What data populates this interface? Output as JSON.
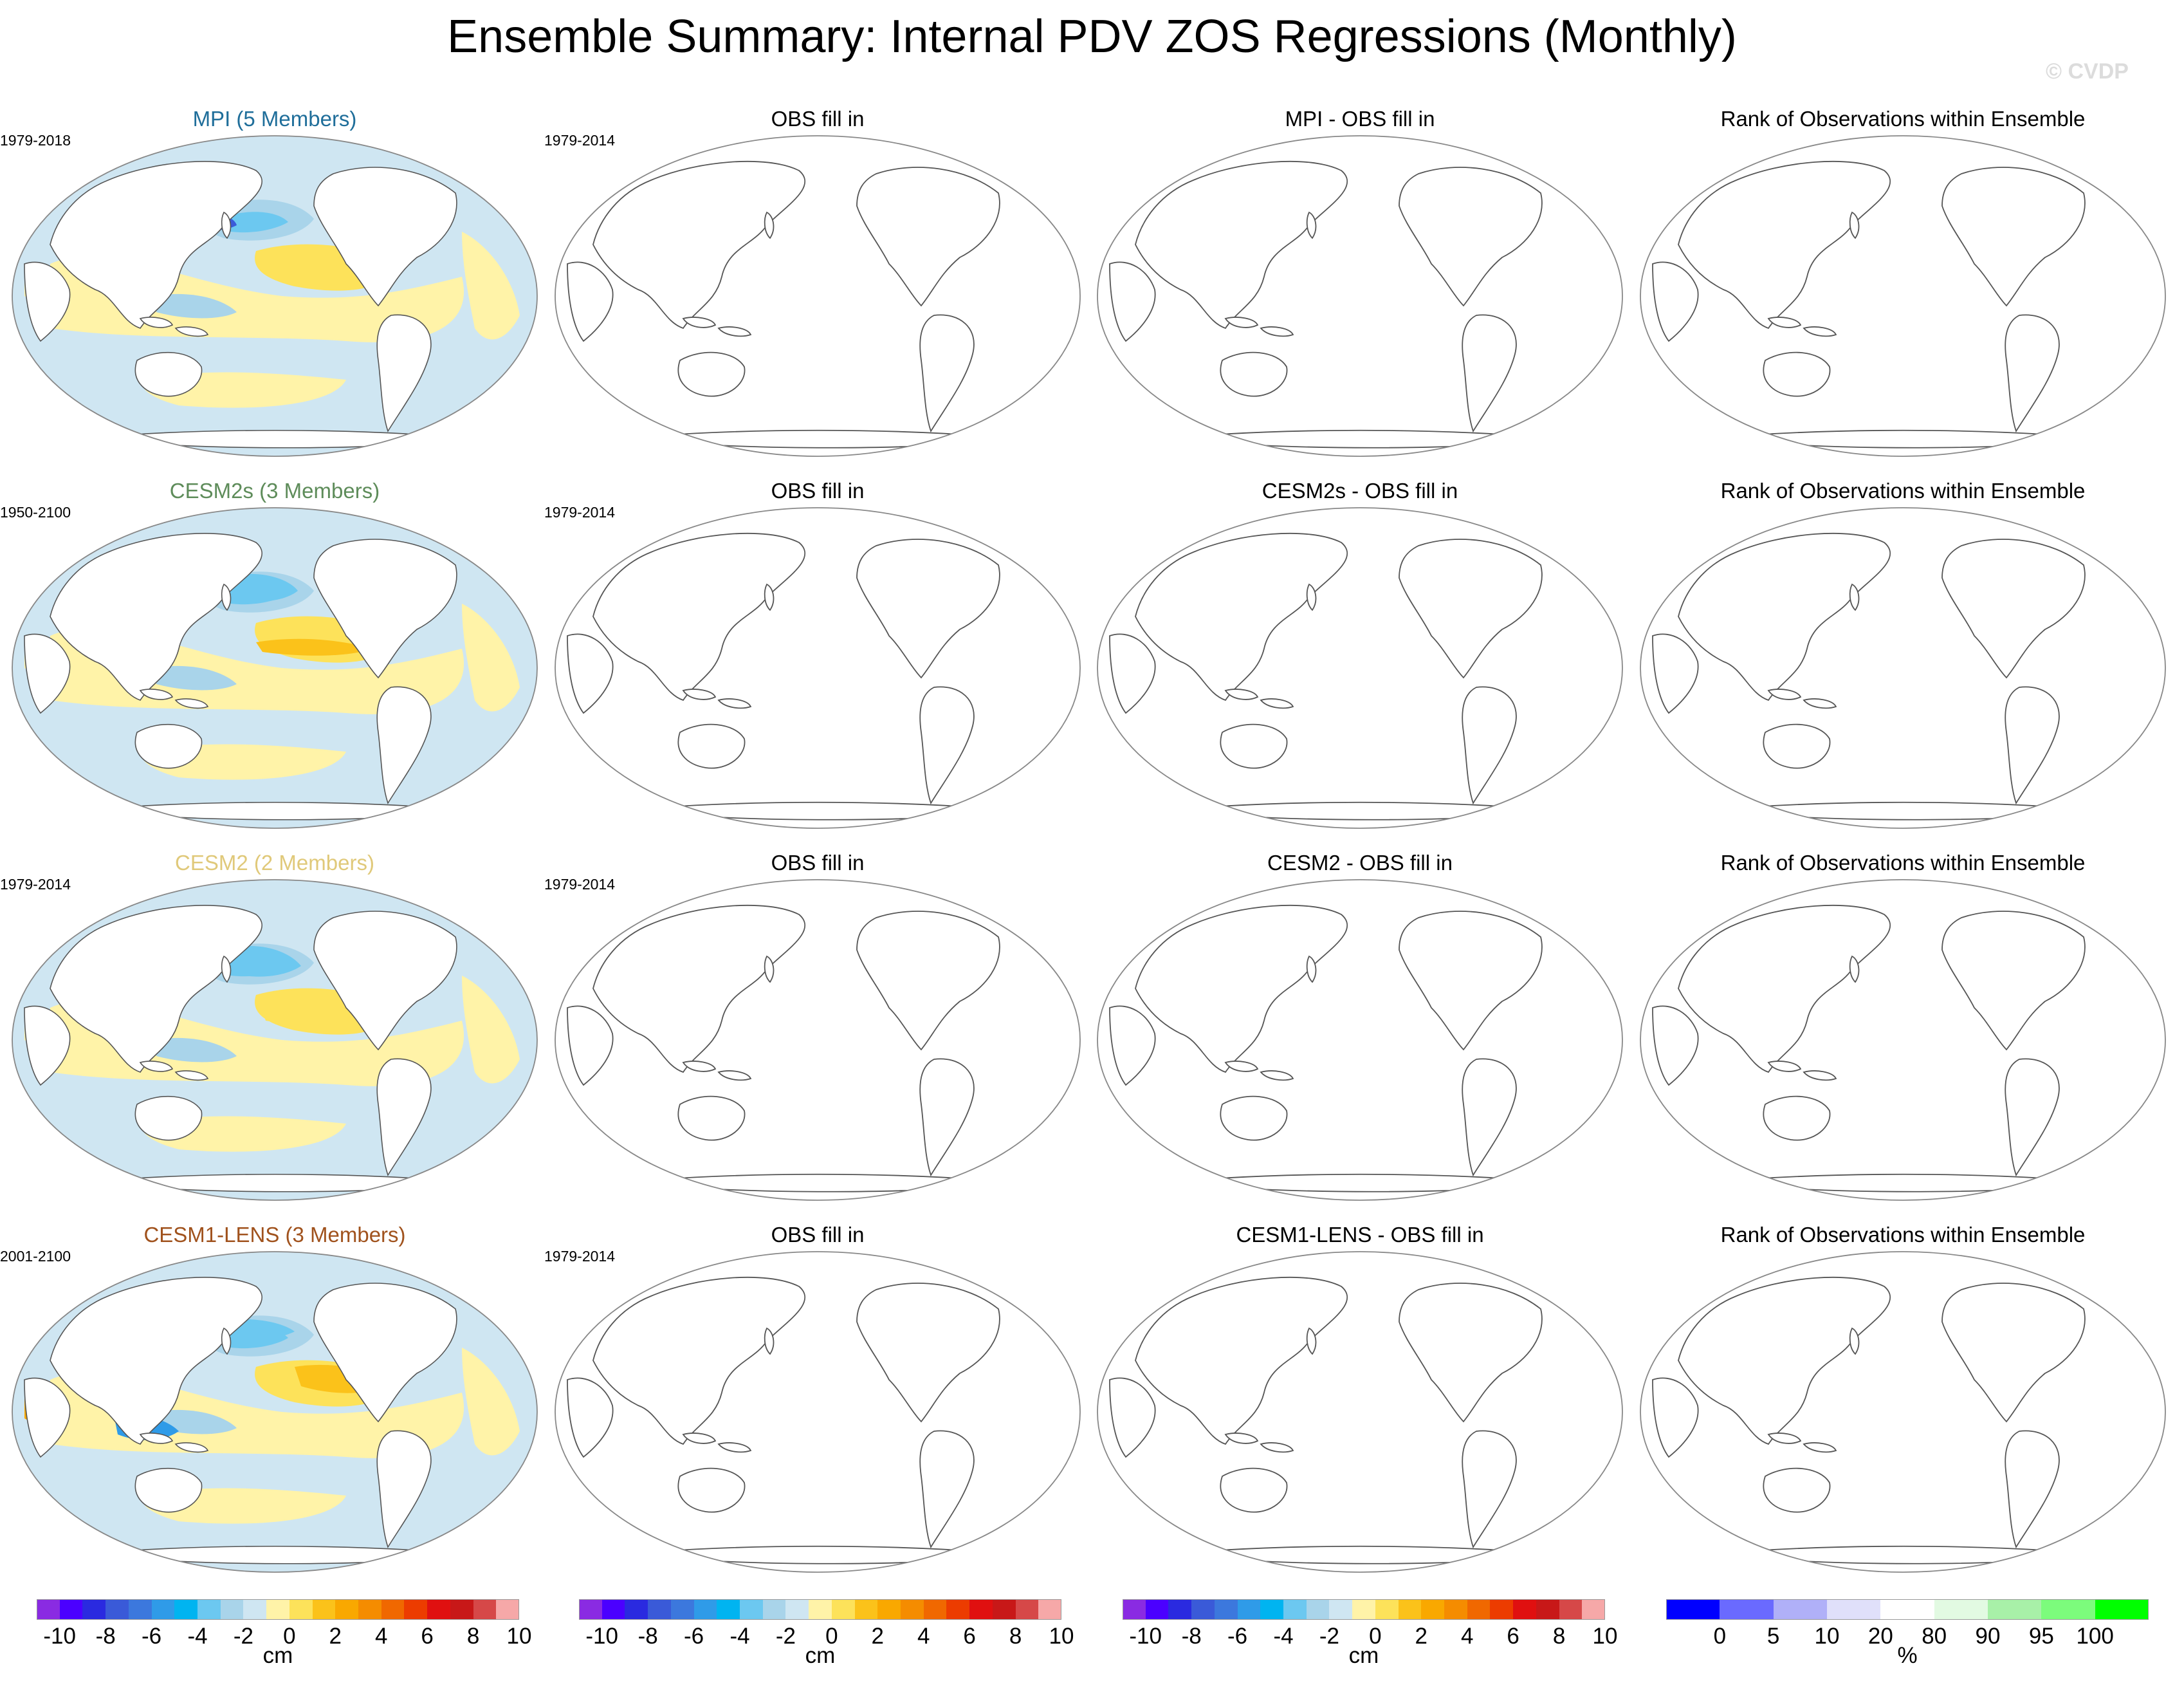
{
  "title": "Ensemble Summary: Internal PDV ZOS Regressions (Monthly)",
  "watermark": "© CVDP",
  "rows": [
    {
      "model_title": "MPI (5 Members)",
      "model_color": "#1f6e9a",
      "model_period": "1979-2018",
      "obs_title": "OBS fill in",
      "obs_period": "1979-2014",
      "diff_title": "MPI - OBS fill in",
      "rank_title": "Rank of Observations within Ensemble"
    },
    {
      "model_title": "CESM2s (3 Members)",
      "model_color": "#5e8c5a",
      "model_period": "1950-2100",
      "obs_title": "OBS fill in",
      "obs_period": "1979-2014",
      "diff_title": "CESM2s - OBS fill in",
      "rank_title": "Rank of Observations within Ensemble"
    },
    {
      "model_title": "CESM2 (2 Members)",
      "model_color": "#e0c97a",
      "model_period": "1979-2014",
      "obs_title": "OBS fill in",
      "obs_period": "1979-2014",
      "diff_title": "CESM2 - OBS fill in",
      "rank_title": "Rank of Observations within Ensemble"
    },
    {
      "model_title": "CESM1-LENS (3 Members)",
      "model_color": "#a0521d",
      "model_period": "2001-2100",
      "obs_title": "OBS fill in",
      "obs_period": "1979-2014",
      "diff_title": "CESM1-LENS - OBS fill in",
      "rank_title": "Rank of Observations within Ensemble"
    }
  ],
  "colorbars": {
    "cm": {
      "colors": [
        "#8a2be2",
        "#4b00ff",
        "#2a2ae0",
        "#3a5ad8",
        "#3c78dd",
        "#2f9be8",
        "#00b4f0",
        "#6cc8f0",
        "#a9d4ea",
        "#cfe6f2",
        "#fff3a8",
        "#fde25a",
        "#fbc21a",
        "#f9a800",
        "#f58c00",
        "#f06800",
        "#ec3c00",
        "#e01010",
        "#c81818",
        "#d64848",
        "#f6a8a8"
      ],
      "labels": [
        "-10",
        "-8",
        "-6",
        "-4",
        "-2",
        "0",
        "2",
        "4",
        "6",
        "8",
        "10"
      ],
      "unit": "cm"
    },
    "pct": {
      "colors": [
        "#0000ff",
        "#6a6aff",
        "#b0b0f8",
        "#e0e0fa",
        "#ffffff",
        "#e2fae2",
        "#a8f0a8",
        "#7cfc7c",
        "#00ff00"
      ],
      "labels": [
        "0",
        "5",
        "10",
        "20",
        "80",
        "90",
        "95",
        "100"
      ],
      "unit": "%"
    }
  },
  "chart_data": {
    "type": "map-grid",
    "projection": "Robinson, Pacific-centered",
    "variable": "ZOS regression on PDV",
    "unit": "cm",
    "contour_levels": [
      -10,
      -9,
      -8,
      -7,
      -6,
      -5,
      -4,
      -3,
      -2,
      -1,
      0,
      1,
      2,
      3,
      4,
      5,
      6,
      7,
      8,
      9,
      10
    ],
    "rank_levels": [
      0,
      5,
      10,
      20,
      80,
      90,
      95,
      100
    ]
  }
}
